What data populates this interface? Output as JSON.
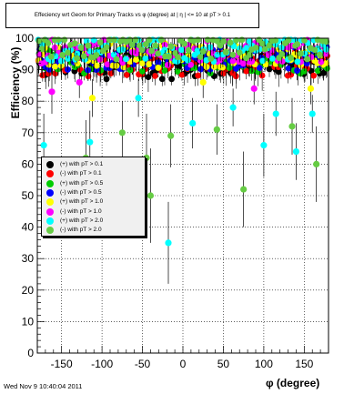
{
  "title": "Effeciency wrt Geom for Primary Tracks vs φ (degree) at |  η | <= 10 at pT > 0.1",
  "footer": "Wed Nov  9 10:40:04 2011",
  "chart_data": {
    "type": "scatter",
    "xlabel": "φ (degree)",
    "ylabel": "Efficiency (%)",
    "xlim": [
      -180,
      180
    ],
    "ylim": [
      0,
      100
    ],
    "x_ticks": [
      -150,
      -100,
      -50,
      0,
      50,
      100,
      150
    ],
    "y_ticks": [
      0,
      10,
      20,
      30,
      40,
      50,
      60,
      70,
      80,
      90,
      100
    ],
    "grid": true,
    "legend_position": "center-left",
    "series": [
      {
        "name": "(+) with pT > 0.1",
        "color": "#000000"
      },
      {
        "name": "(-) with pT > 0.1",
        "color": "#ff0000"
      },
      {
        "name": "(+) with pT > 0.5",
        "color": "#00cc00"
      },
      {
        "name": "(-) with pT > 0.5",
        "color": "#0000ff"
      },
      {
        "name": "(+) with pT > 1.0",
        "color": "#ffff00"
      },
      {
        "name": "(-) with pT > 1.0",
        "color": "#ff00ff"
      },
      {
        "name": "(+) with pT > 2.0",
        "color": "#00ffff"
      },
      {
        "name": "(-) with pT > 2.0",
        "color": "#66cc44"
      }
    ],
    "outliers": [
      {
        "series": 6,
        "x": -172,
        "y": 66,
        "err": 10
      },
      {
        "series": 7,
        "x": -120,
        "y": 62,
        "err": 12
      },
      {
        "series": 6,
        "x": -115,
        "y": 67,
        "err": 10
      },
      {
        "series": 7,
        "x": -75,
        "y": 70,
        "err": 10
      },
      {
        "series": 7,
        "x": -45,
        "y": 62,
        "err": 14
      },
      {
        "series": 7,
        "x": -40,
        "y": 50,
        "err": 15
      },
      {
        "series": 6,
        "x": -18,
        "y": 35,
        "err": 13
      },
      {
        "series": 7,
        "x": -15,
        "y": 69,
        "err": 10
      },
      {
        "series": 6,
        "x": 12,
        "y": 73,
        "err": 8
      },
      {
        "series": 7,
        "x": 42,
        "y": 71,
        "err": 8
      },
      {
        "series": 7,
        "x": 75,
        "y": 52,
        "err": 12
      },
      {
        "series": 6,
        "x": 100,
        "y": 66,
        "err": 10
      },
      {
        "series": 6,
        "x": 140,
        "y": 64,
        "err": 9
      },
      {
        "series": 7,
        "x": 135,
        "y": 72,
        "err": 9
      },
      {
        "series": 7,
        "x": 165,
        "y": 60,
        "err": 12
      },
      {
        "series": 5,
        "x": -162,
        "y": 83,
        "err": 7
      },
      {
        "series": 4,
        "x": -112,
        "y": 81,
        "err": 6
      },
      {
        "series": 5,
        "x": -128,
        "y": 86,
        "err": 5
      },
      {
        "series": 6,
        "x": -55,
        "y": 81,
        "err": 6
      },
      {
        "series": 4,
        "x": 25,
        "y": 86,
        "err": 5
      },
      {
        "series": 6,
        "x": 62,
        "y": 78,
        "err": 6
      },
      {
        "series": 5,
        "x": 88,
        "y": 84,
        "err": 5
      },
      {
        "series": 6,
        "x": 115,
        "y": 76,
        "err": 7
      },
      {
        "series": 4,
        "x": 158,
        "y": 84,
        "err": 5
      },
      {
        "series": 6,
        "x": 160,
        "y": 76,
        "err": 6
      }
    ]
  }
}
